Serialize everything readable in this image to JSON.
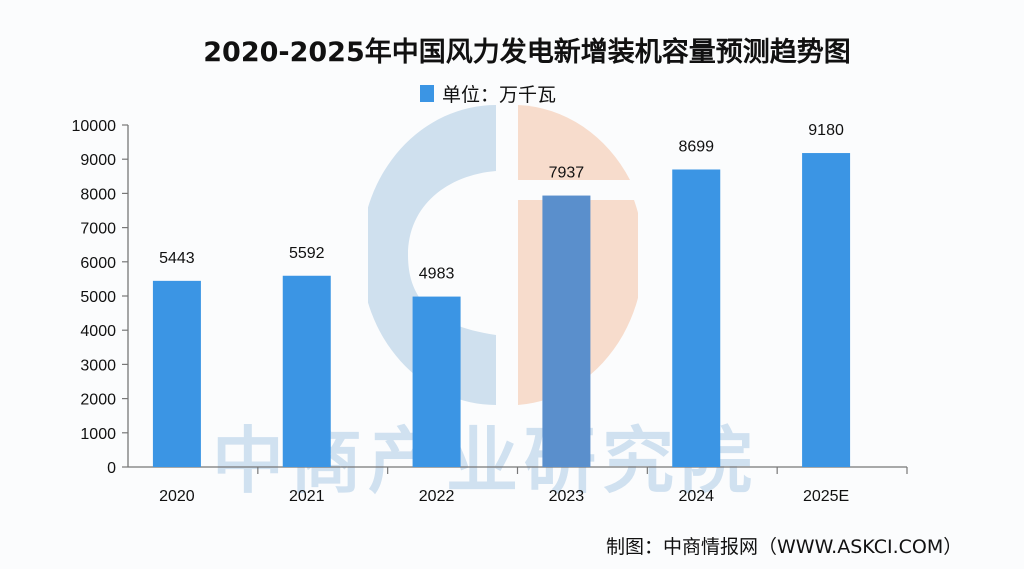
{
  "header": {
    "title": "2020-2025年中国风力发电新增装机容量预测趋势图",
    "legend_label": "单位：万千瓦"
  },
  "watermark": {
    "text": "中商产业研究院",
    "logo": "askci-circle-logo"
  },
  "footer": {
    "source": "制图：中商情报网（WWW.ASKCI.COM）"
  },
  "colors": {
    "bar": "#3b95e4",
    "bar_highlight": "#5a8fcc",
    "logo_blue": "#cfe0ee",
    "logo_orange": "#f7dccc",
    "axis": "#777777"
  },
  "chart_data": {
    "type": "bar",
    "title": "2020-2025年中国风力发电新增装机容量预测趋势图",
    "legend": [
      "单位：万千瓦"
    ],
    "legend_position": "top",
    "categories": [
      "2020",
      "2021",
      "2022",
      "2023",
      "2024",
      "2025E"
    ],
    "values": [
      5443,
      5592,
      4983,
      7937,
      8699,
      9180
    ],
    "xlabel": "",
    "ylabel": "",
    "ylim": [
      0,
      10000
    ],
    "yticks": [
      0,
      1000,
      2000,
      3000,
      4000,
      5000,
      6000,
      7000,
      8000,
      9000,
      10000
    ],
    "grid": false,
    "data_labels": true
  }
}
